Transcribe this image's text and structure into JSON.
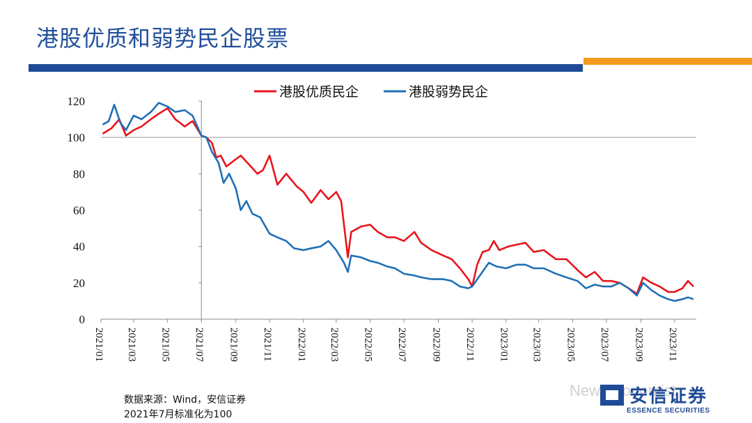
{
  "slide": {
    "title": "港股优质和弱势民企股票",
    "source_note": "数据来源：Wind，安信证券",
    "normalize_note": "2021年7月标准化为100",
    "watermark": "New Economist",
    "logo_cn": "安信证券",
    "logo_en": "ESSENCE SECURITIES",
    "accent_blue": "#1f4b96",
    "accent_orange": "#f29b1d"
  },
  "chart_data": {
    "type": "line",
    "title": "",
    "xlabel": "",
    "ylabel": "",
    "ylim": [
      0,
      120
    ],
    "yticks": [
      0,
      20,
      40,
      60,
      80,
      100,
      120
    ],
    "xlim": [
      "2021-01",
      "2023-12"
    ],
    "xticks": [
      "2021/01",
      "2021/03",
      "2021/05",
      "2021/07",
      "2021/09",
      "2021/11",
      "2022/01",
      "2022/03",
      "2022/05",
      "2022/07",
      "2022/09",
      "2022/11",
      "2023/01",
      "2023/03",
      "2023/05",
      "2023/07",
      "2023/09",
      "2023/11"
    ],
    "grid": false,
    "legend_position": "top-center",
    "series": [
      {
        "name": "港股优质民企",
        "color": "#e8141b",
        "points": [
          [
            "2021-01-04",
            102
          ],
          [
            "2021-01-20",
            105
          ],
          [
            "2021-02-03",
            110
          ],
          [
            "2021-02-15",
            101
          ],
          [
            "2021-03-01",
            104
          ],
          [
            "2021-03-15",
            106
          ],
          [
            "2021-04-01",
            110
          ],
          [
            "2021-04-15",
            113
          ],
          [
            "2021-05-01",
            116
          ],
          [
            "2021-05-15",
            110
          ],
          [
            "2021-06-01",
            106
          ],
          [
            "2021-06-15",
            109
          ],
          [
            "2021-07-01",
            101
          ],
          [
            "2021-07-10",
            100
          ],
          [
            "2021-07-20",
            97
          ],
          [
            "2021-07-28",
            89
          ],
          [
            "2021-08-05",
            90
          ],
          [
            "2021-08-15",
            84
          ],
          [
            "2021-09-01",
            88
          ],
          [
            "2021-09-10",
            90
          ],
          [
            "2021-09-25",
            85
          ],
          [
            "2021-10-10",
            80
          ],
          [
            "2021-10-20",
            82
          ],
          [
            "2021-11-01",
            90
          ],
          [
            "2021-11-15",
            74
          ],
          [
            "2021-12-01",
            80
          ],
          [
            "2021-12-20",
            73
          ],
          [
            "2022-01-01",
            70
          ],
          [
            "2022-01-15",
            64
          ],
          [
            "2022-02-01",
            71
          ],
          [
            "2022-02-15",
            66
          ],
          [
            "2022-03-01",
            70
          ],
          [
            "2022-03-10",
            65
          ],
          [
            "2022-03-15",
            52
          ],
          [
            "2022-03-22",
            34
          ],
          [
            "2022-03-28",
            48
          ],
          [
            "2022-04-15",
            51
          ],
          [
            "2022-05-01",
            52
          ],
          [
            "2022-05-15",
            48
          ],
          [
            "2022-06-01",
            45
          ],
          [
            "2022-06-15",
            45
          ],
          [
            "2022-07-01",
            43
          ],
          [
            "2022-07-20",
            48
          ],
          [
            "2022-08-01",
            42
          ],
          [
            "2022-08-20",
            38
          ],
          [
            "2022-09-10",
            35
          ],
          [
            "2022-09-25",
            33
          ],
          [
            "2022-10-10",
            28
          ],
          [
            "2022-10-25",
            22
          ],
          [
            "2022-11-01",
            18
          ],
          [
            "2022-11-10",
            30
          ],
          [
            "2022-11-20",
            37
          ],
          [
            "2022-12-01",
            38
          ],
          [
            "2022-12-10",
            43
          ],
          [
            "2022-12-20",
            38
          ],
          [
            "2023-01-05",
            40
          ],
          [
            "2023-01-20",
            41
          ],
          [
            "2023-02-05",
            42
          ],
          [
            "2023-02-20",
            37
          ],
          [
            "2023-03-10",
            38
          ],
          [
            "2023-04-01",
            33
          ],
          [
            "2023-04-20",
            33
          ],
          [
            "2023-05-10",
            27
          ],
          [
            "2023-05-25",
            23
          ],
          [
            "2023-06-10",
            26
          ],
          [
            "2023-06-25",
            21
          ],
          [
            "2023-07-10",
            21
          ],
          [
            "2023-07-25",
            20
          ],
          [
            "2023-08-10",
            17
          ],
          [
            "2023-08-25",
            14
          ],
          [
            "2023-09-05",
            23
          ],
          [
            "2023-09-20",
            20
          ],
          [
            "2023-10-05",
            18
          ],
          [
            "2023-10-20",
            15
          ],
          [
            "2023-11-01",
            15
          ],
          [
            "2023-11-15",
            17
          ],
          [
            "2023-11-25",
            21
          ],
          [
            "2023-12-05",
            18
          ]
        ]
      },
      {
        "name": "港股弱势民企",
        "color": "#1f6fb5",
        "points": [
          [
            "2021-01-04",
            107
          ],
          [
            "2021-01-15",
            109
          ],
          [
            "2021-01-25",
            118
          ],
          [
            "2021-02-05",
            108
          ],
          [
            "2021-02-15",
            104
          ],
          [
            "2021-03-01",
            112
          ],
          [
            "2021-03-15",
            110
          ],
          [
            "2021-04-01",
            114
          ],
          [
            "2021-04-15",
            119
          ],
          [
            "2021-05-01",
            117
          ],
          [
            "2021-05-15",
            114
          ],
          [
            "2021-06-01",
            115
          ],
          [
            "2021-06-15",
            112
          ],
          [
            "2021-07-01",
            101
          ],
          [
            "2021-07-10",
            100
          ],
          [
            "2021-07-20",
            92
          ],
          [
            "2021-08-01",
            86
          ],
          [
            "2021-08-10",
            75
          ],
          [
            "2021-08-20",
            80
          ],
          [
            "2021-09-01",
            72
          ],
          [
            "2021-09-10",
            60
          ],
          [
            "2021-09-20",
            65
          ],
          [
            "2021-10-01",
            58
          ],
          [
            "2021-10-15",
            56
          ],
          [
            "2021-11-01",
            47
          ],
          [
            "2021-11-15",
            45
          ],
          [
            "2021-12-01",
            43
          ],
          [
            "2021-12-15",
            39
          ],
          [
            "2022-01-01",
            38
          ],
          [
            "2022-01-15",
            39
          ],
          [
            "2022-02-01",
            40
          ],
          [
            "2022-02-15",
            43
          ],
          [
            "2022-03-01",
            38
          ],
          [
            "2022-03-15",
            31
          ],
          [
            "2022-03-22",
            26
          ],
          [
            "2022-03-28",
            35
          ],
          [
            "2022-04-15",
            34
          ],
          [
            "2022-05-01",
            32
          ],
          [
            "2022-05-15",
            31
          ],
          [
            "2022-06-01",
            29
          ],
          [
            "2022-06-15",
            28
          ],
          [
            "2022-07-01",
            25
          ],
          [
            "2022-07-20",
            24
          ],
          [
            "2022-08-01",
            23
          ],
          [
            "2022-08-20",
            22
          ],
          [
            "2022-09-10",
            22
          ],
          [
            "2022-09-25",
            21
          ],
          [
            "2022-10-10",
            18
          ],
          [
            "2022-10-25",
            17
          ],
          [
            "2022-11-01",
            18
          ],
          [
            "2022-11-15",
            24
          ],
          [
            "2022-12-01",
            31
          ],
          [
            "2022-12-15",
            29
          ],
          [
            "2023-01-01",
            28
          ],
          [
            "2023-01-20",
            30
          ],
          [
            "2023-02-05",
            30
          ],
          [
            "2023-02-20",
            28
          ],
          [
            "2023-03-10",
            28
          ],
          [
            "2023-04-01",
            25
          ],
          [
            "2023-04-20",
            23
          ],
          [
            "2023-05-10",
            21
          ],
          [
            "2023-05-25",
            17
          ],
          [
            "2023-06-10",
            19
          ],
          [
            "2023-06-25",
            18
          ],
          [
            "2023-07-10",
            18
          ],
          [
            "2023-07-25",
            20
          ],
          [
            "2023-08-10",
            17
          ],
          [
            "2023-08-25",
            13
          ],
          [
            "2023-09-05",
            20
          ],
          [
            "2023-09-20",
            16
          ],
          [
            "2023-10-05",
            13
          ],
          [
            "2023-10-20",
            11
          ],
          [
            "2023-11-01",
            10
          ],
          [
            "2023-11-15",
            11
          ],
          [
            "2023-11-25",
            12
          ],
          [
            "2023-12-05",
            11
          ]
        ]
      }
    ]
  }
}
